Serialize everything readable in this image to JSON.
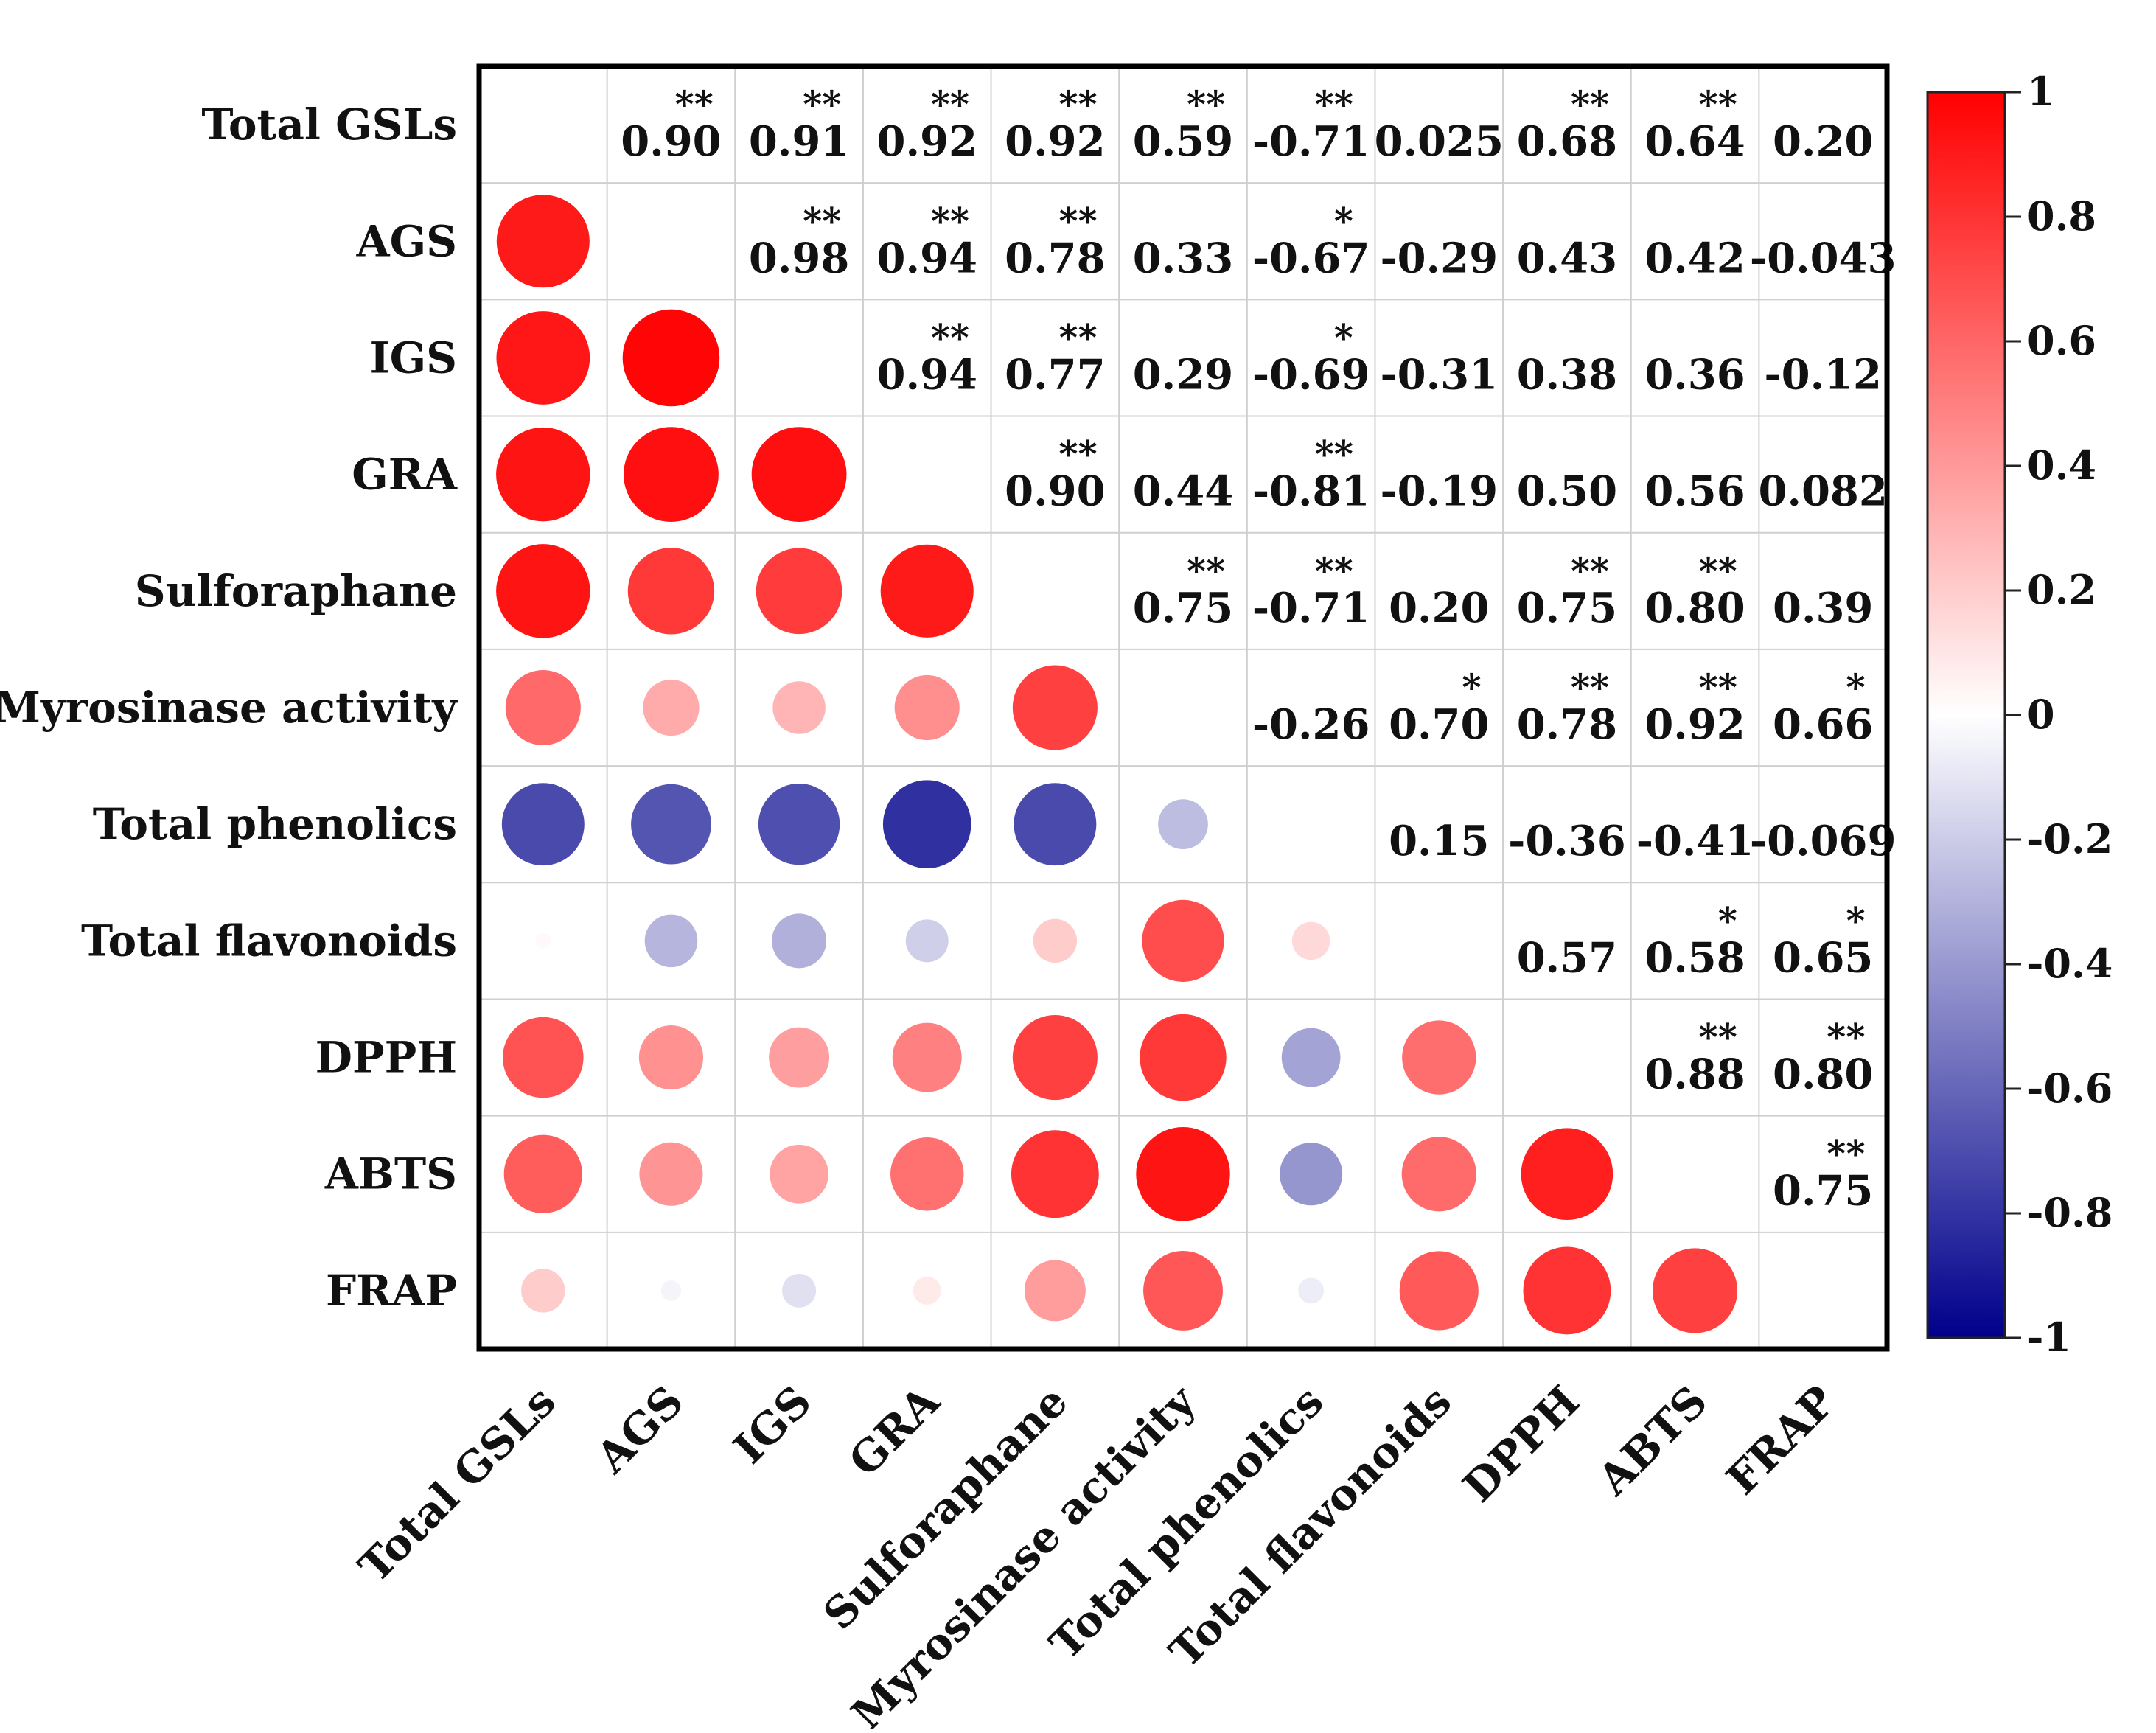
{
  "chart_data": {
    "type": "heatmap",
    "subtype": "correlation-matrix",
    "lower_triangle_style": "circles",
    "upper_triangle_style": "values",
    "variables": [
      "Total GSLs",
      "AGS",
      "IGS",
      "GRA",
      "Sulforaphane",
      "Myrosinase activity",
      "Total phenolics",
      "Total flavonoids",
      "DPPH",
      "ABTS",
      "FRAP"
    ],
    "correlations": [
      [
        "",
        "0.90",
        "0.91",
        "0.92",
        "0.92",
        "0.59",
        "-0.71",
        "0.025",
        "0.68",
        "0.64",
        "0.20"
      ],
      [
        "0.90",
        "",
        "0.98",
        "0.94",
        "0.78",
        "0.33",
        "-0.67",
        "-0.29",
        "0.43",
        "0.42",
        "-0.043"
      ],
      [
        "0.91",
        "0.98",
        "",
        "0.94",
        "0.77",
        "0.29",
        "-0.69",
        "-0.31",
        "0.38",
        "0.36",
        "-0.12"
      ],
      [
        "0.92",
        "0.94",
        "0.94",
        "",
        "0.90",
        "0.44",
        "-0.81",
        "-0.19",
        "0.50",
        "0.56",
        "0.082"
      ],
      [
        "0.92",
        "0.78",
        "0.77",
        "0.90",
        "",
        "0.75",
        "-0.71",
        "0.20",
        "0.75",
        "0.80",
        "0.39"
      ],
      [
        "0.59",
        "0.33",
        "0.29",
        "0.44",
        "0.75",
        "",
        "-0.26",
        "0.70",
        "0.78",
        "0.92",
        "0.66"
      ],
      [
        "-0.71",
        "-0.67",
        "-0.69",
        "-0.81",
        "-0.71",
        "-0.26",
        "",
        "0.15",
        "-0.36",
        "-0.41",
        "-0.069"
      ],
      [
        "0.025",
        "-0.29",
        "-0.31",
        "-0.19",
        "0.20",
        "0.70",
        "0.15",
        "",
        "0.57",
        "0.58",
        "0.65"
      ],
      [
        "0.68",
        "0.43",
        "0.38",
        "0.50",
        "0.75",
        "0.78",
        "-0.36",
        "0.57",
        "",
        "0.88",
        "0.80"
      ],
      [
        "0.64",
        "0.42",
        "0.36",
        "0.56",
        "0.80",
        "0.92",
        "-0.41",
        "0.58",
        "0.88",
        "",
        "0.75"
      ],
      [
        "0.20",
        "-0.043",
        "-0.12",
        "0.082",
        "0.39",
        "0.66",
        "-0.069",
        "0.65",
        "0.80",
        "0.75",
        ""
      ]
    ],
    "significance": [
      [
        "",
        "**",
        "**",
        "**",
        "**",
        "**",
        "**",
        "",
        "**",
        "**",
        ""
      ],
      [
        "**",
        "",
        "**",
        "**",
        "**",
        "",
        "*",
        "",
        "",
        "",
        ""
      ],
      [
        "**",
        "**",
        "",
        "**",
        "**",
        "",
        "*",
        "",
        "",
        "",
        ""
      ],
      [
        "**",
        "**",
        "**",
        "",
        "**",
        "",
        "**",
        "",
        "",
        "",
        ""
      ],
      [
        "**",
        "**",
        "**",
        "**",
        "",
        "**",
        "**",
        "",
        "**",
        "**",
        ""
      ],
      [
        "**",
        "",
        "",
        "",
        "**",
        "",
        "",
        "*",
        "**",
        "**",
        "*"
      ],
      [
        "**",
        "*",
        "*",
        "**",
        "**",
        "",
        "",
        "",
        "",
        "",
        ""
      ],
      [
        "",
        "",
        "",
        "",
        "",
        "*",
        "",
        "",
        "",
        "*",
        "*"
      ],
      [
        "**",
        "",
        "",
        "",
        "**",
        "**",
        "",
        "",
        "",
        "**",
        "**"
      ],
      [
        "**",
        "",
        "",
        "",
        "**",
        "**",
        "",
        "*",
        "**",
        "",
        "**"
      ],
      [
        "",
        "",
        "",
        "",
        "",
        "*",
        "",
        "*",
        "**",
        "**",
        ""
      ]
    ],
    "colorbar": {
      "min": -1,
      "max": 1,
      "ticks": [
        "1",
        "0.8",
        "0.6",
        "0.4",
        "0.2",
        "0",
        "-0.2",
        "-0.4",
        "-0.6",
        "-0.8",
        "-1"
      ],
      "colors": {
        "negative": "#00008b",
        "zero": "#ffffff",
        "positive": "#ff0000"
      }
    },
    "title": "",
    "xlabel": "",
    "ylabel": ""
  }
}
